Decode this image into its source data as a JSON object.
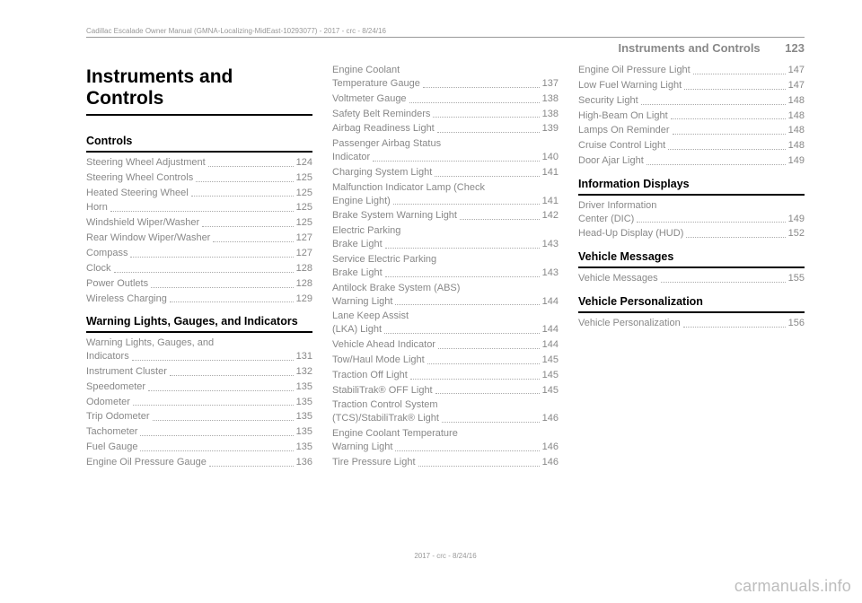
{
  "header_small": "Cadillac Escalade Owner Manual (GMNA-Localizing-MidEast-10293077) - 2017 - crc - 8/24/16",
  "page_header": {
    "title": "Instruments and Controls",
    "number": "123"
  },
  "chapter_title": "Instruments and Controls",
  "footer": "2017 - crc - 8/24/16",
  "watermark": "carmanuals.info",
  "col1": {
    "sections": [
      {
        "head": "Controls",
        "items": [
          {
            "label": "Steering Wheel Adjustment",
            "page": "124"
          },
          {
            "label": "Steering Wheel Controls",
            "page": "125"
          },
          {
            "label": "Heated Steering Wheel",
            "page": "125"
          },
          {
            "label": "Horn",
            "page": "125"
          },
          {
            "label": "Windshield Wiper/Washer",
            "page": "125"
          },
          {
            "label": "Rear Window Wiper/Washer",
            "page": "127"
          },
          {
            "label": "Compass",
            "page": "127"
          },
          {
            "label": "Clock",
            "page": "128"
          },
          {
            "label": "Power Outlets",
            "page": "128"
          },
          {
            "label": "Wireless Charging",
            "page": "129"
          }
        ]
      },
      {
        "head": "Warning Lights, Gauges, and Indicators",
        "items": [
          {
            "label": "Warning Lights, Gauges, and Indicators",
            "page": "131"
          },
          {
            "label": "Instrument Cluster",
            "page": "132"
          },
          {
            "label": "Speedometer",
            "page": "135"
          },
          {
            "label": "Odometer",
            "page": "135"
          },
          {
            "label": "Trip Odometer",
            "page": "135"
          },
          {
            "label": "Tachometer",
            "page": "135"
          },
          {
            "label": "Fuel Gauge",
            "page": "135"
          },
          {
            "label": "Engine Oil Pressure Gauge",
            "page": "136"
          }
        ]
      }
    ]
  },
  "col2": {
    "items": [
      {
        "label": "Engine Coolant Temperature Gauge",
        "page": "137"
      },
      {
        "label": "Voltmeter Gauge",
        "page": "138"
      },
      {
        "label": "Safety Belt Reminders",
        "page": "138"
      },
      {
        "label": "Airbag Readiness Light",
        "page": "139"
      },
      {
        "label": "Passenger Airbag Status Indicator",
        "page": "140"
      },
      {
        "label": "Charging System Light",
        "page": "141"
      },
      {
        "label": "Malfunction Indicator Lamp (Check Engine Light)",
        "page": "141"
      },
      {
        "label": "Brake System Warning Light",
        "page": "142"
      },
      {
        "label": "Electric Parking Brake Light",
        "page": "143"
      },
      {
        "label": "Service Electric Parking Brake Light",
        "page": "143"
      },
      {
        "label": "Antilock Brake System (ABS) Warning Light",
        "page": "144"
      },
      {
        "label": "Lane Keep Assist (LKA) Light",
        "page": "144"
      },
      {
        "label": "Vehicle Ahead Indicator",
        "page": "144"
      },
      {
        "label": "Tow/Haul Mode Light",
        "page": "145"
      },
      {
        "label": "Traction Off Light",
        "page": "145"
      },
      {
        "label": "StabiliTrak® OFF Light",
        "page": "145"
      },
      {
        "label": "Traction Control System (TCS)/StabiliTrak® Light",
        "page": "146"
      },
      {
        "label": "Engine Coolant Temperature Warning Light",
        "page": "146"
      },
      {
        "label": "Tire Pressure Light",
        "page": "146"
      }
    ]
  },
  "col3": {
    "top_items": [
      {
        "label": "Engine Oil Pressure Light",
        "page": "147"
      },
      {
        "label": "Low Fuel Warning Light",
        "page": "147"
      },
      {
        "label": "Security Light",
        "page": "148"
      },
      {
        "label": "High-Beam On Light",
        "page": "148"
      },
      {
        "label": "Lamps On Reminder",
        "page": "148"
      },
      {
        "label": "Cruise Control Light",
        "page": "148"
      },
      {
        "label": "Door Ajar Light",
        "page": "149"
      }
    ],
    "sections": [
      {
        "head": "Information Displays",
        "items": [
          {
            "label": "Driver Information Center (DIC)",
            "page": "149"
          },
          {
            "label": "Head-Up Display (HUD)",
            "page": "152"
          }
        ]
      },
      {
        "head": "Vehicle Messages",
        "items": [
          {
            "label": "Vehicle Messages",
            "page": "155"
          }
        ]
      },
      {
        "head": "Vehicle Personalization",
        "items": [
          {
            "label": "Vehicle Personalization",
            "page": "156"
          }
        ]
      }
    ]
  }
}
